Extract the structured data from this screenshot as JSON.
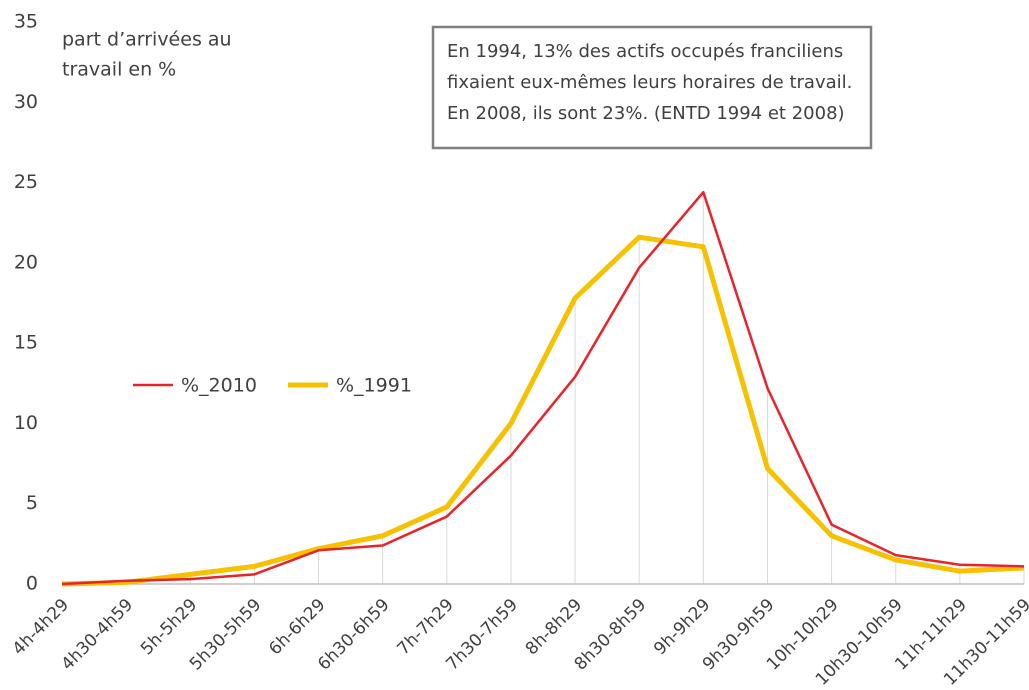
{
  "chart_data": {
    "type": "line",
    "y_label_lines": [
      "part d’arrivées au",
      "travail en %"
    ],
    "annotation_lines": [
      "En 1994, 13% des actifs occupés franciliens",
      "fixaient eux-mêmes leurs horaires de travail.",
      "En 2008, ils sont 23%. (ENTD 1994 et 2008)"
    ],
    "categories": [
      "4h-4h29",
      "4h30-4h59",
      "5h-5h29",
      "5h30-5h59",
      "6h-6h29",
      "6h30-6h59",
      "7h-7h29",
      "7h30-7h59",
      "8h-8h29",
      "8h30-8h59",
      "9h-9h29",
      "9h30-9h59",
      "10h-10h29",
      "10h30-10h59",
      "11h-11h29",
      "11h30-11h59"
    ],
    "series": [
      {
        "name": "%_2010",
        "color": "#e8232a",
        "width": 2.5,
        "values": [
          0,
          0.2,
          0.3,
          0.6,
          2.1,
          2.4,
          4.2,
          8.0,
          12.9,
          19.7,
          24.4,
          12.2,
          3.7,
          1.8,
          1.2,
          1.1
        ]
      },
      {
        "name": "%_1991",
        "color": "#f6c100",
        "width": 5,
        "values": [
          0,
          0.1,
          0.6,
          1.1,
          2.2,
          3.0,
          4.8,
          10.0,
          17.8,
          21.6,
          21.0,
          7.2,
          3.0,
          1.5,
          0.8,
          1.0
        ]
      }
    ],
    "ylim": [
      0,
      35
    ],
    "yticks": [
      0,
      5,
      10,
      15,
      20,
      25,
      30,
      35
    ]
  }
}
